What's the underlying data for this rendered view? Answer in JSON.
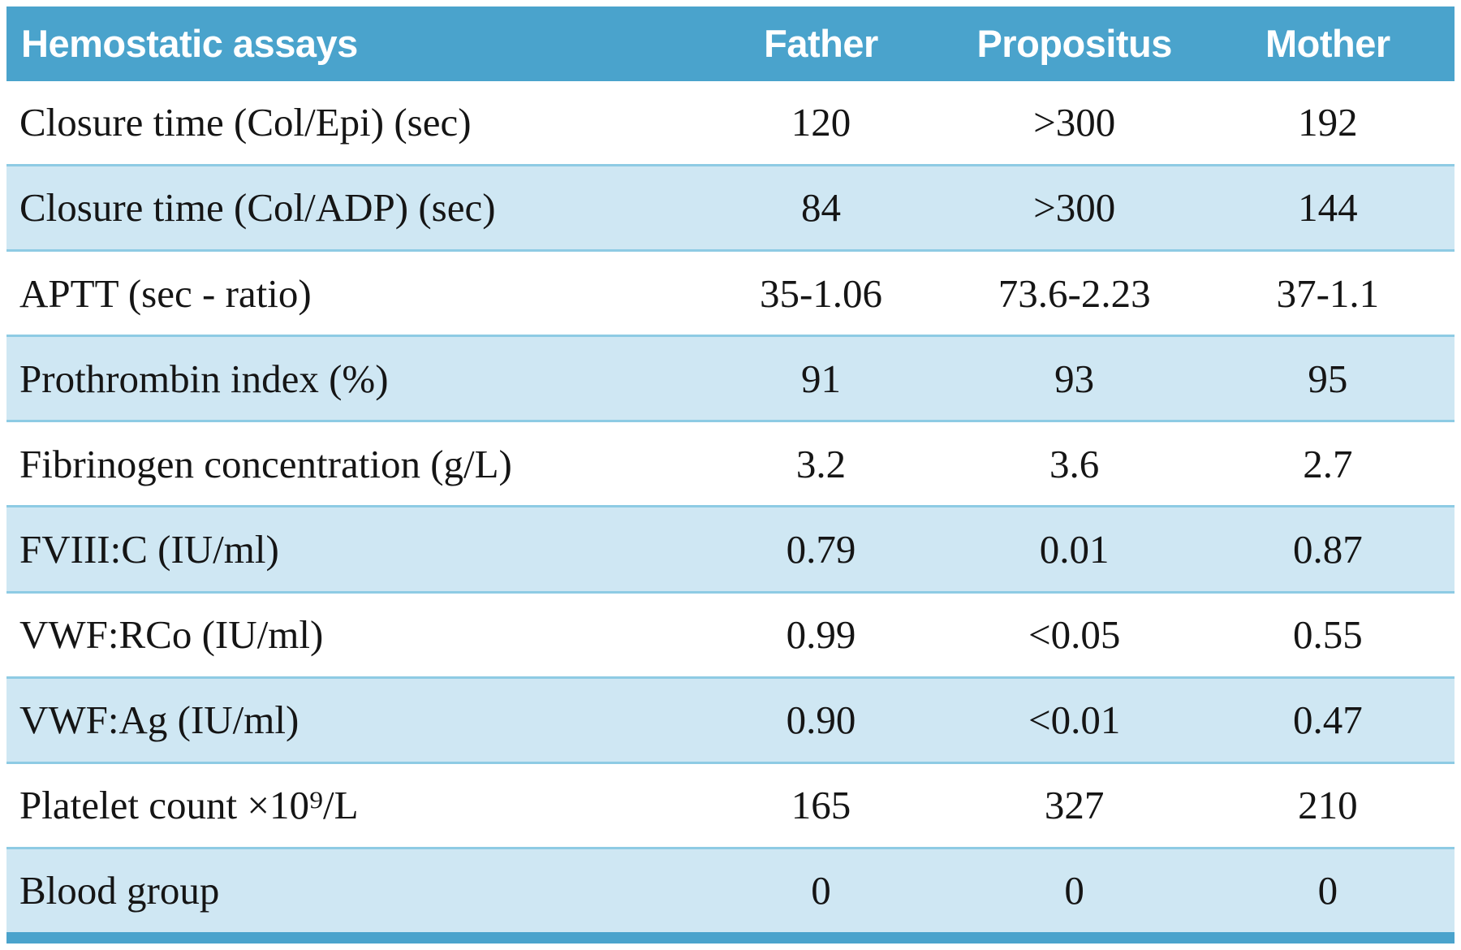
{
  "chart_data": {
    "type": "table",
    "columns": [
      "Hemostatic assays",
      "Father",
      "Propositus",
      "Mother"
    ],
    "rows": [
      {
        "label": "Closure time (Col/Epi) (sec)",
        "father": "120",
        "propositus": ">300",
        "mother": "192"
      },
      {
        "label": "Closure time (Col/ADP) (sec)",
        "father": "84",
        "propositus": ">300",
        "mother": "144"
      },
      {
        "label": "APTT (sec - ratio)",
        "father": "35-1.06",
        "propositus": "73.6-2.23",
        "mother": "37-1.1"
      },
      {
        "label": "Prothrombin index (%)",
        "father": "91",
        "propositus": "93",
        "mother": "95"
      },
      {
        "label": "Fibrinogen concentration (g/L)",
        "father": "3.2",
        "propositus": "3.6",
        "mother": "2.7"
      },
      {
        "label": "FVIII:C (IU/ml)",
        "father": "0.79",
        "propositus": "0.01",
        "mother": "0.87"
      },
      {
        "label": "VWF:RCo (IU/ml)",
        "father": "0.99",
        "propositus": "<0.05",
        "mother": "0.55"
      },
      {
        "label": "VWF:Ag (IU/ml)",
        "father": "0.90",
        "propositus": "<0.01",
        "mother": "0.47"
      },
      {
        "label": "Platelet count ×10⁹/L",
        "father": "165",
        "propositus": "327",
        "mother": "210"
      },
      {
        "label": "Blood group",
        "father": "0",
        "propositus": "0",
        "mother": "0"
      }
    ]
  },
  "colors": {
    "header_bg": "#4aa3cc",
    "header_text": "#ffffff",
    "row_alt_bg": "#cfe7f3",
    "divider": "#8ecbe4",
    "text": "#151515"
  }
}
